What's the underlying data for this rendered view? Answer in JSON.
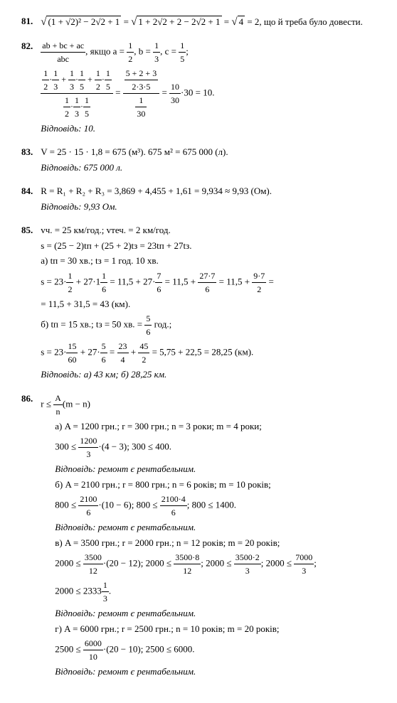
{
  "problems": {
    "p81": {
      "num": "81.",
      "expr": "√((1+√2)² − 2√2 + 1) = √(1 + 2√2 + 2 − 2√2 + 1) = √4 = 2, що й треба було довести."
    },
    "p82": {
      "num": "82.",
      "cond": ", якщо a = ",
      "a_t": "1",
      "a_b": "2",
      "b_lbl": ", b = ",
      "b_t": "1",
      "b_b": "3",
      "c_lbl": ", c = ",
      "c_t": "1",
      "c_b": "5",
      "frac_main_t": "ab + bc + ac",
      "frac_main_b": "abc",
      "calc_line_top": "1/2·1/3 + 1/3·1/5 + 1/2·1/5",
      "calc_line_bot": "1/2·1/3·1/5",
      "eq_mid_t": "5 + 2 + 3",
      "eq_mid_b": "2·3·5",
      "eq_mid2_t": "1",
      "eq_mid2_b": "30",
      "eq_res_t": "10",
      "eq_res_b": "30",
      "tail": "·30 = 10.",
      "answer": "Відповідь: 10."
    },
    "p83": {
      "num": "83.",
      "line": "V = 25 · 15 · 1,8 = 675 (м³). 675 м² = 675 000 (л).",
      "answer": "Відповідь: 675 000 л."
    },
    "p84": {
      "num": "84.",
      "line": "R = R₁ + R₂ + R₃ = 3,869 + 4,455 + 1,61 = 9,934 ≈ 9,93 (Ом).",
      "answer": "Відповідь: 9,93 Ом."
    },
    "p85": {
      "num": "85.",
      "l1": "vч. = 25 км/год.; vтеч. = 2 км/год.",
      "l2": "s = (25 − 2)tп + (25 + 2)tз = 23tп + 27tз.",
      "l3": "а) tп = 30 хв.; tз = 1 год. 10 хв.",
      "l4_pre": "s = 23·",
      "l4_f1t": "1",
      "l4_f1b": "2",
      "l4_p2": " + 27·1",
      "l4_f2t": "1",
      "l4_f2b": "6",
      "l4_p3": " = 11,5 + 27·",
      "l4_f3t": "7",
      "l4_f3b": "6",
      "l4_p4": " = 11,5 + ",
      "l4_f4t": "27·7",
      "l4_f4b": "6",
      "l4_p5": " = 11,5 + ",
      "l4_f5t": "9·7",
      "l4_f5b": "2",
      "l4_p6": " =",
      "l5": "= 11,5 + 31,5 = 43 (км).",
      "l6_pre": "б) tп = 15 хв.; tз = 50 хв. = ",
      "l6_ft": "5",
      "l6_fb": "6",
      "l6_post": " год.;",
      "l7_pre": "s = 23·",
      "l7_f1t": "15",
      "l7_f1b": "60",
      "l7_p2": " + 27·",
      "l7_f2t": "5",
      "l7_f2b": "6",
      "l7_p3": " = ",
      "l7_f3t": "23",
      "l7_f3b": "4",
      "l7_p4": " + ",
      "l7_f4t": "45",
      "l7_f4b": "2",
      "l7_p5": " = 5,75 + 22,5 = 28,25 (км).",
      "answer": "Відповідь: а) 43 км; б) 28,25 км."
    },
    "p86": {
      "num": "86.",
      "head_pre": "r ≤ ",
      "head_t": "A",
      "head_b": "n",
      "head_post": "(m − n)",
      "a_l1": "а) A = 1200 грн.; r = 300 грн.; n = 3 роки; m = 4 роки;",
      "a_l2_pre": "300 ≤ ",
      "a_l2_t": "1200",
      "a_l2_b": "3",
      "a_l2_post": "·(4 − 3); 300 ≤ 400.",
      "a_ans": "Відповідь: ремонт є рентабельним.",
      "b_l1": "б) A = 2100 грн.; r = 800 грн.; n = 6 років; m = 10 років;",
      "b_l2_pre": "800 ≤ ",
      "b_l2_t": "2100",
      "b_l2_b": "6",
      "b_l2_mid": "·(10 − 6); 800 ≤ ",
      "b_l2_t2": "2100·4",
      "b_l2_b2": "6",
      "b_l2_post": "; 800 ≤ 1400.",
      "b_ans": "Відповідь: ремонт є рентабельним.",
      "c_l1": "в) A = 3500 грн.; r = 2000 грн.; n = 12 років; m = 20 років;",
      "c_l2_pre": "2000 ≤ ",
      "c_l2_t": "3500",
      "c_l2_b": "12",
      "c_l2_p2": "·(20 − 12); 2000 ≤ ",
      "c_l2_t2": "3500·8",
      "c_l2_b2": "12",
      "c_l2_p3": "; 2000 ≤ ",
      "c_l2_t3": "3500·2",
      "c_l2_b3": "3",
      "c_l2_p4": "; 2000 ≤ ",
      "c_l2_t4": "7000",
      "c_l2_b4": "3",
      "c_l2_p5": ";",
      "c_l3_pre": "2000 ≤ 2333",
      "c_l3_t": "1",
      "c_l3_b": "3",
      "c_l3_post": ".",
      "c_ans": "Відповідь: ремонт є рентабельним.",
      "d_l1": "г) A = 6000 грн.; r = 2500 грн.; n = 10 років; m = 20 років;",
      "d_l2_pre": "2500 ≤ ",
      "d_l2_t": "6000",
      "d_l2_b": "10",
      "d_l2_post": "·(20 − 10); 2500 ≤ 6000.",
      "d_ans": "Відповідь: ремонт є рентабельним."
    }
  }
}
